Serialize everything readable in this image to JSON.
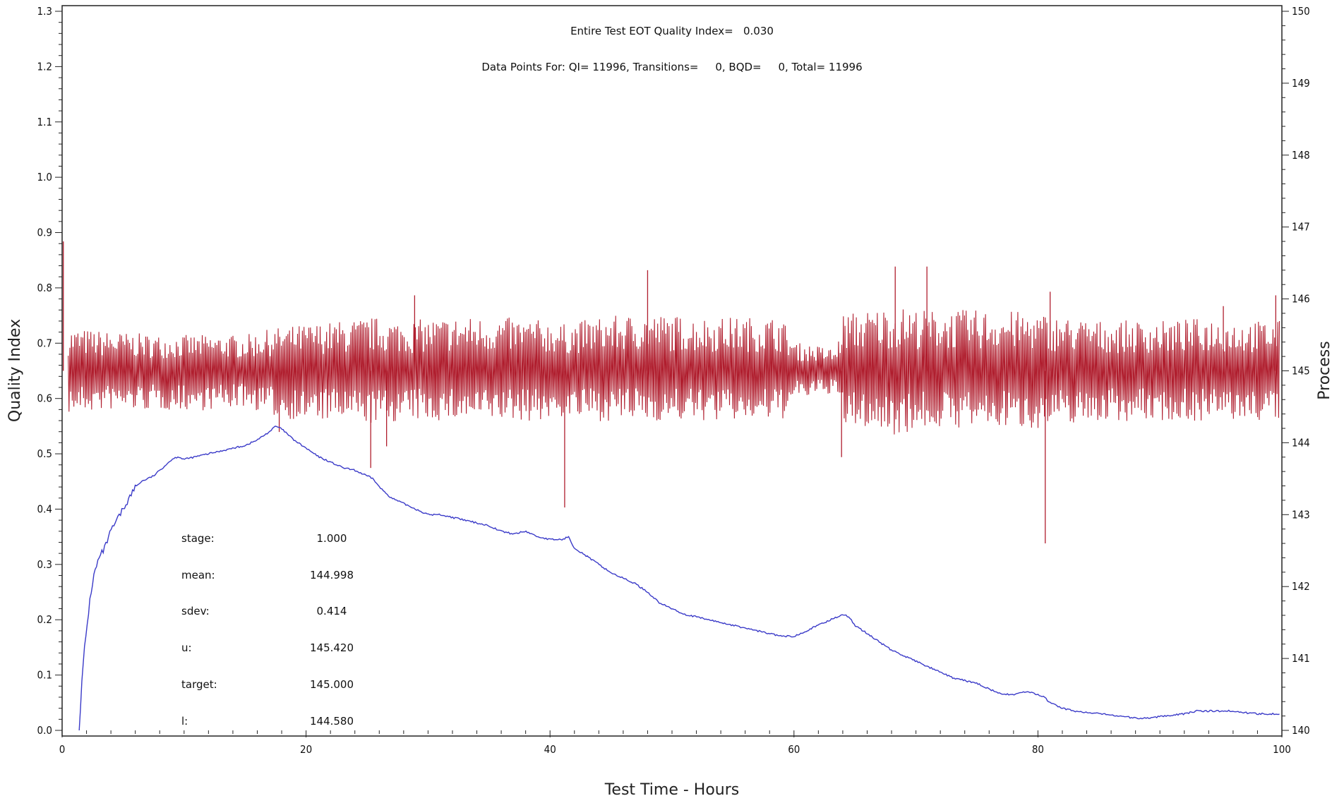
{
  "chart_data": {
    "type": "line",
    "title": "Entire Test EOT Quality Index=   0.030",
    "subtitle": "Data Points For: QI= 11996, Transitions=     0, BQD=     0, Total= 11996",
    "xlabel": "Test Time - Hours",
    "ylabel_left": "Quality Index",
    "ylabel_right": "Process",
    "xlim": [
      0,
      100
    ],
    "ylim_left": [
      0,
      1.3
    ],
    "ylim_right": [
      140,
      150
    ],
    "x_ticks": [
      "0",
      "20",
      "40",
      "60",
      "80",
      "100"
    ],
    "y_left_ticks": [
      "0.0",
      "0.1",
      "0.2",
      "0.3",
      "0.4",
      "0.5",
      "0.6",
      "0.7",
      "0.8",
      "0.9",
      "1.0",
      "1.1",
      "1.2",
      "1.3"
    ],
    "y_right_ticks": [
      "140",
      "141",
      "142",
      "143",
      "144",
      "145",
      "146",
      "147",
      "148",
      "149",
      "150"
    ],
    "grid": false,
    "colors": {
      "quality_index": "#3a3ac8",
      "process": "#b01e2e"
    },
    "series": [
      {
        "axis": "left",
        "color": "#3a3ac8",
        "x": [
          1.4,
          1.6,
          1.8,
          2.0,
          2.3,
          2.6,
          3.0,
          3.5,
          4.0,
          4.5,
          5.0,
          5.5,
          6.0,
          6.5,
          7.0,
          7.5,
          8.0,
          8.5,
          9.0,
          9.5,
          10.0,
          11.0,
          12.0,
          13.0,
          14.0,
          15.0,
          16.0,
          17.0,
          17.5,
          18.0,
          19.0,
          20.0,
          21.0,
          22.0,
          23.0,
          24.0,
          25.0,
          25.5,
          26.0,
          27.0,
          28.0,
          29.0,
          30.0,
          31.0,
          32.0,
          33.0,
          34.0,
          35.0,
          36.0,
          37.0,
          38.0,
          39.0,
          40.0,
          41.0,
          41.5,
          42.0,
          43.0,
          44.0,
          45.0,
          46.0,
          47.0,
          48.0,
          49.0,
          50.0,
          51.0,
          52.0,
          53.0,
          54.0,
          55.0,
          56.0,
          57.0,
          58.0,
          59.0,
          60.0,
          61.0,
          62.0,
          63.0,
          64.0,
          64.5,
          65.0,
          66.0,
          67.0,
          68.0,
          69.0,
          70.0,
          71.0,
          72.0,
          73.0,
          74.0,
          75.0,
          76.0,
          77.0,
          78.0,
          79.0,
          80.0,
          80.5,
          81.0,
          82.0,
          83.0,
          84.0,
          85.0,
          86.0,
          87.0,
          88.0,
          89.0,
          90.0,
          91.0,
          92.0,
          93.0,
          94.0,
          95.0,
          96.0,
          97.0,
          98.0,
          99.0,
          99.8
        ],
        "y": [
          0.0,
          0.08,
          0.14,
          0.18,
          0.24,
          0.28,
          0.31,
          0.33,
          0.36,
          0.38,
          0.4,
          0.42,
          0.44,
          0.45,
          0.455,
          0.46,
          0.47,
          0.48,
          0.49,
          0.495,
          0.49,
          0.495,
          0.5,
          0.505,
          0.51,
          0.515,
          0.525,
          0.54,
          0.55,
          0.545,
          0.525,
          0.51,
          0.495,
          0.485,
          0.475,
          0.47,
          0.46,
          0.455,
          0.44,
          0.42,
          0.41,
          0.4,
          0.39,
          0.39,
          0.385,
          0.38,
          0.375,
          0.37,
          0.36,
          0.355,
          0.36,
          0.35,
          0.345,
          0.345,
          0.35,
          0.33,
          0.315,
          0.3,
          0.285,
          0.275,
          0.265,
          0.25,
          0.23,
          0.22,
          0.21,
          0.205,
          0.2,
          0.195,
          0.19,
          0.185,
          0.18,
          0.175,
          0.17,
          0.17,
          0.18,
          0.19,
          0.2,
          0.21,
          0.205,
          0.19,
          0.175,
          0.16,
          0.145,
          0.135,
          0.125,
          0.115,
          0.105,
          0.095,
          0.09,
          0.085,
          0.075,
          0.065,
          0.065,
          0.07,
          0.065,
          0.06,
          0.05,
          0.04,
          0.035,
          0.032,
          0.03,
          0.028,
          0.025,
          0.022,
          0.022,
          0.025,
          0.028,
          0.03,
          0.035,
          0.035,
          0.035,
          0.035,
          0.032,
          0.03,
          0.03,
          0.03
        ]
      },
      {
        "axis": "right",
        "color": "#b01e2e",
        "x": [
          0.5,
          4.0,
          8.0,
          12.0,
          15.0,
          17.5,
          20.0,
          23.0,
          25.5,
          28.0,
          32.0,
          36.0,
          40.0,
          41.0,
          44.0,
          48.0,
          52.0,
          56.0,
          59.0,
          60.0,
          62.0,
          63.5,
          64.0,
          66.0,
          68.0,
          71.0,
          74.0,
          77.0,
          80.0,
          80.5,
          82.0,
          85.0,
          88.0,
          91.0,
          94.0,
          97.0,
          99.8
        ],
        "center": [
          145.0,
          145.0,
          145.0,
          145.0,
          145.0,
          145.0,
          145.0,
          145.0,
          145.0,
          145.0,
          145.0,
          145.0,
          145.0,
          145.0,
          145.0,
          145.0,
          145.0,
          145.0,
          145.0,
          145.0,
          145.0,
          145.0,
          145.0,
          145.0,
          145.0,
          145.0,
          145.0,
          145.0,
          145.0,
          145.0,
          145.0,
          145.0,
          145.0,
          145.0,
          145.0,
          145.0,
          145.0
        ],
        "upper": [
          145.6,
          145.55,
          145.5,
          145.5,
          145.5,
          145.6,
          145.65,
          145.7,
          145.75,
          145.7,
          145.75,
          145.75,
          145.7,
          145.65,
          145.75,
          145.8,
          145.75,
          145.75,
          145.75,
          145.4,
          145.35,
          145.3,
          145.8,
          145.85,
          145.9,
          145.85,
          145.85,
          145.85,
          145.8,
          145.8,
          145.75,
          145.7,
          145.7,
          145.7,
          145.75,
          145.7,
          145.7
        ],
        "lower": [
          144.4,
          144.45,
          144.45,
          144.45,
          144.5,
          144.35,
          144.3,
          144.3,
          144.25,
          144.3,
          144.3,
          144.3,
          144.3,
          144.35,
          144.3,
          144.3,
          144.3,
          144.3,
          144.3,
          144.6,
          144.65,
          144.7,
          144.2,
          144.2,
          144.1,
          144.2,
          144.2,
          144.2,
          144.2,
          144.2,
          144.25,
          144.3,
          144.3,
          144.3,
          144.3,
          144.3,
          144.3
        ],
        "spikes_x": [
          0.1,
          17.8,
          25.3,
          26.6,
          28.9,
          41.2,
          48.0,
          63.9,
          68.3,
          70.9,
          80.6,
          81.0,
          95.2,
          99.5
        ],
        "spikes_y": [
          146.8,
          144.15,
          143.65,
          143.95,
          146.05,
          143.1,
          146.4,
          143.8,
          146.45,
          146.45,
          142.6,
          146.1,
          145.9,
          146.05
        ]
      }
    ]
  },
  "stats": {
    "labels": [
      "stage:",
      "mean:",
      "sdev:",
      "u:",
      "target:",
      "l:"
    ],
    "values": [
      "1.000",
      "144.998",
      "0.414",
      "145.420",
      "145.000",
      "144.580"
    ]
  }
}
